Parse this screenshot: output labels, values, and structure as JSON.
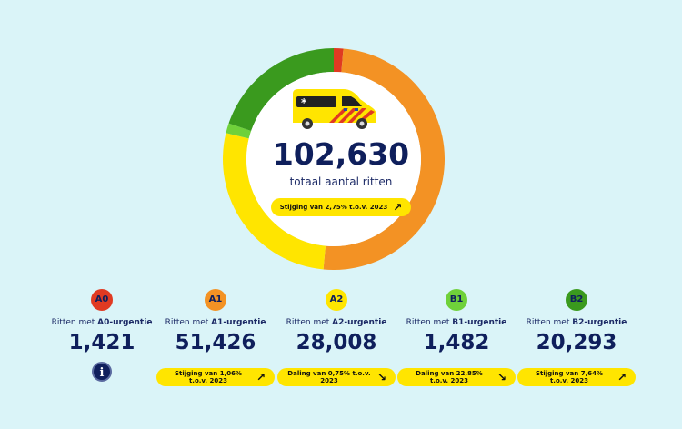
{
  "summary": {
    "total": "102,630",
    "total_label": "totaal aantal ritten",
    "trend": "Stijging van 2,75% t.o.v. 2023",
    "trend_dir": "up"
  },
  "colors": {
    "A0": "#e03a22",
    "A1": "#f39224",
    "A2": "#ffe500",
    "B1": "#6fd13a",
    "B2": "#3a9a1e",
    "background": "#daf4f8",
    "text": "#0f1f5c"
  },
  "categories": [
    {
      "code": "A0",
      "label_pre": "Ritten met ",
      "label_bold": "A0-urgentie",
      "value": 1421,
      "display": "1,421",
      "trend": null,
      "icon": "info-icon"
    },
    {
      "code": "A1",
      "label_pre": "Ritten met ",
      "label_bold": "A1-urgentie",
      "value": 51426,
      "display": "51,426",
      "trend": "Stijging van 1,06% t.o.v. 2023",
      "trend_dir": "up"
    },
    {
      "code": "A2",
      "label_pre": "Ritten met ",
      "label_bold": "A2-urgentie",
      "value": 28008,
      "display": "28,008",
      "trend": "Daling van 0,75% t.o.v. 2023",
      "trend_dir": "down"
    },
    {
      "code": "B1",
      "label_pre": "Ritten met ",
      "label_bold": "B1-urgentie",
      "value": 1482,
      "display": "1,482",
      "trend": "Daling van 22,85% t.o.v. 2023",
      "trend_dir": "down"
    },
    {
      "code": "B2",
      "label_pre": "Ritten met ",
      "label_bold": "B2-urgentie",
      "value": 20293,
      "display": "20,293",
      "trend": "Stijging van 7,64% t.o.v. 2023",
      "trend_dir": "up"
    }
  ]
}
